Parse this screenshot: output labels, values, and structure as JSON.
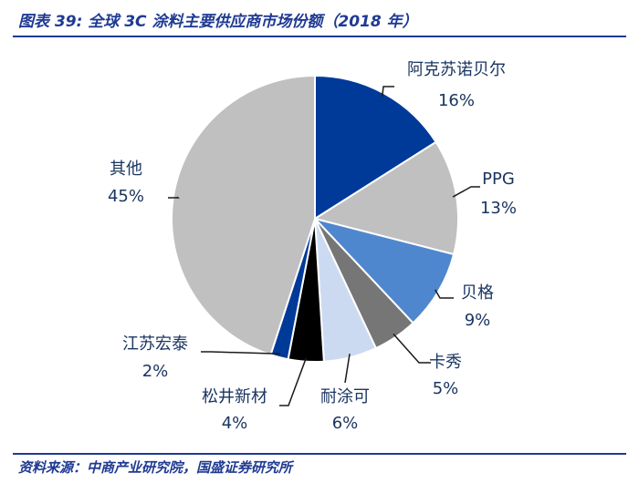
{
  "title": "图表 39:  全球 3C 涂料主要供应商市场份额（2018 年）",
  "source": "资料来源：中商产业研究院，国盛证券研究所",
  "chart_data": {
    "type": "pie",
    "title": "",
    "unit": "%",
    "slices": [
      {
        "name": "阿克苏诺贝尔",
        "value": 16,
        "label": "16%",
        "color": "#003a99"
      },
      {
        "name": "PPG",
        "value": 13,
        "label": "13%",
        "color": "#c0c0c0"
      },
      {
        "name": "贝格",
        "value": 9,
        "label": "9%",
        "color": "#4f87cf"
      },
      {
        "name": "卡秀",
        "value": 5,
        "label": "5%",
        "color": "#767676"
      },
      {
        "name": "耐涂可",
        "value": 6,
        "label": "6%",
        "color": "#ccdaf1"
      },
      {
        "name": "松井新材",
        "value": 4,
        "label": "4%",
        "color": "#000000"
      },
      {
        "name": "江苏宏泰",
        "value": 2,
        "label": "2%",
        "color": "#003a99"
      },
      {
        "name": "其他",
        "value": 45,
        "label": "45%",
        "color": "#c0c0c0"
      }
    ]
  }
}
